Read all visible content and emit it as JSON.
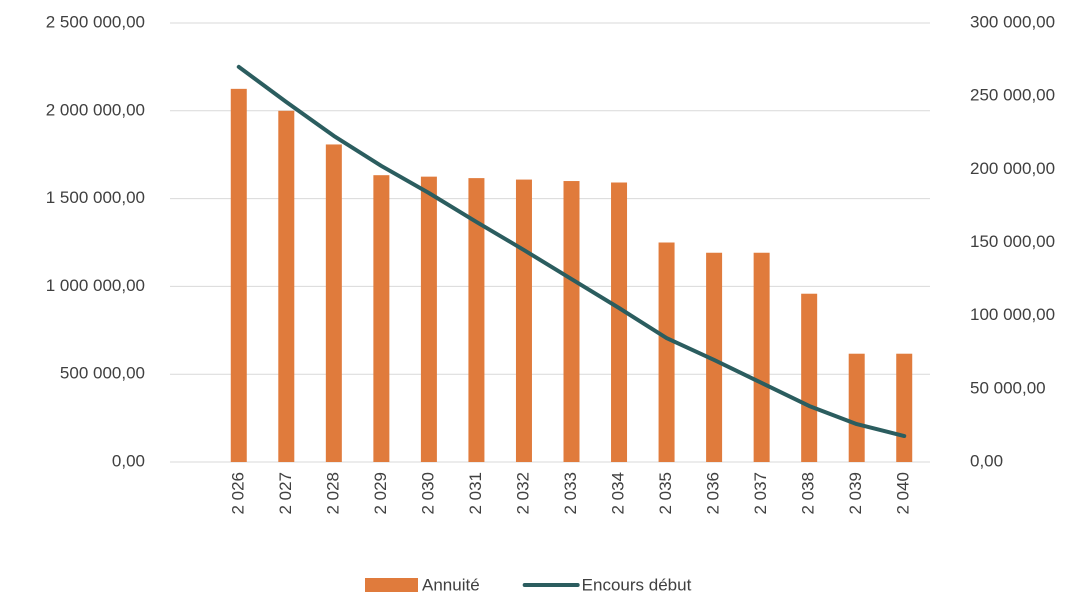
{
  "chart_data": {
    "type": "bar_line",
    "categories": [
      "2 026",
      "2 027",
      "2 028",
      "2 029",
      "2 030",
      "2 031",
      "2 032",
      "2 033",
      "2 034",
      "2 035",
      "2 036",
      "2 037",
      "2 038",
      "2 039",
      "2 040"
    ],
    "series": [
      {
        "name": "Annuité",
        "type": "bar",
        "color": "#e07b3c",
        "axis": "y2",
        "values": [
          255000,
          240000,
          217000,
          196000,
          195000,
          194000,
          193000,
          192000,
          191000,
          150000,
          143000,
          143000,
          115000,
          74000,
          74000
        ]
      },
      {
        "name": "Encours début",
        "type": "line",
        "color": "#2b5d5f",
        "axis": "y",
        "values": [
          2250000,
          2050000,
          1857000,
          1686000,
          1532000,
          1367000,
          1207000,
          1042000,
          877000,
          706000,
          581000,
          450000,
          319000,
          216000,
          148000
        ]
      }
    ],
    "ylim": [
      0,
      2500000
    ],
    "yticks": [
      {
        "value": 0,
        "label": "0,00"
      },
      {
        "value": 500000,
        "label": "500 000,00"
      },
      {
        "value": 1000000,
        "label": "1 000 000,00"
      },
      {
        "value": 1500000,
        "label": "1 500 000,00"
      },
      {
        "value": 2000000,
        "label": "2 000 000,00"
      },
      {
        "value": 2500000,
        "label": "2 500 000,00"
      }
    ],
    "y2lim": [
      0,
      300000
    ],
    "y2ticks": [
      {
        "value": 0,
        "label": "0,00"
      },
      {
        "value": 50000,
        "label": "50 000,00"
      },
      {
        "value": 100000,
        "label": "100 000,00"
      },
      {
        "value": 150000,
        "label": "150 000,00"
      },
      {
        "value": 200000,
        "label": "200 000,00"
      },
      {
        "value": 250000,
        "label": "250 000,00"
      },
      {
        "value": 300000,
        "label": "300 000,00"
      }
    ],
    "grid": true,
    "legend": "bottom"
  }
}
